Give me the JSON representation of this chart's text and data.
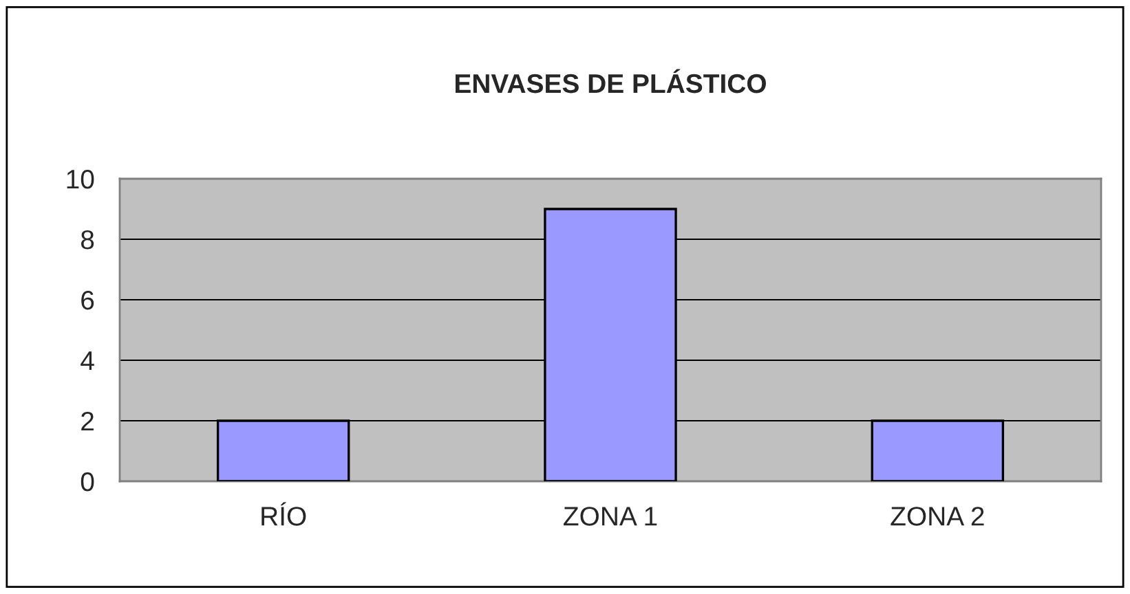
{
  "chart_data": {
    "type": "bar",
    "title": "ENVASES DE PLÁSTICO",
    "categories": [
      "RÍO",
      "ZONA 1",
      "ZONA 2"
    ],
    "values": [
      2,
      9,
      2
    ],
    "color": "#9999ff",
    "ylim": [
      0,
      10
    ],
    "yticks": [
      0,
      2,
      4,
      6,
      8,
      10
    ],
    "grid": "y",
    "legend": false
  }
}
